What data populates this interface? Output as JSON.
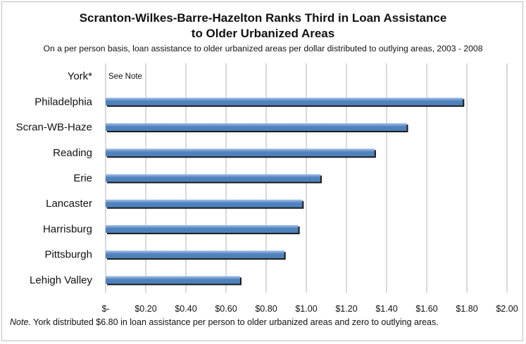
{
  "chart_data": {
    "type": "bar",
    "orientation": "horizontal",
    "title_line1": "Scranton-Wilkes-Barre-Hazelton Ranks Third in Loan Assistance",
    "title_line2": "to Older Urbanized Areas",
    "subtitle": "On a per person basis, loan assistance to older urbanized areas per dollar distributed to outlying areas, 2003 - 2008",
    "categories": [
      "York*",
      "Philadelphia",
      "Scran-WB-Haze",
      "Reading",
      "Erie",
      "Lancaster",
      "Harrisburg",
      "Pittsburgh",
      "Lehigh Valley"
    ],
    "values": [
      null,
      1.78,
      1.5,
      1.34,
      1.07,
      0.98,
      0.96,
      0.89,
      0.67
    ],
    "annotations": [
      {
        "category": "York*",
        "text": "See Note"
      }
    ],
    "xlim": [
      0,
      2.0
    ],
    "x_ticks": [
      0,
      0.2,
      0.4,
      0.6,
      0.8,
      1.0,
      1.2,
      1.4,
      1.6,
      1.8,
      2.0
    ],
    "x_tick_labels": [
      "$-",
      "$0.20",
      "$0.40",
      "$0.60",
      "$0.80",
      "$1.00",
      "$1.20",
      "$1.40",
      "$1.60",
      "$1.80",
      "$2.00"
    ],
    "grid": "vertical",
    "bar_color": "#4f81bd",
    "bar_highlight": "#a9c4ea",
    "bar_shadow": "#1a1a1a"
  },
  "note": {
    "label": "Note.",
    "text": " York distributed $6.80 in loan assistance per person to older urbanized areas and zero to outlying areas."
  }
}
